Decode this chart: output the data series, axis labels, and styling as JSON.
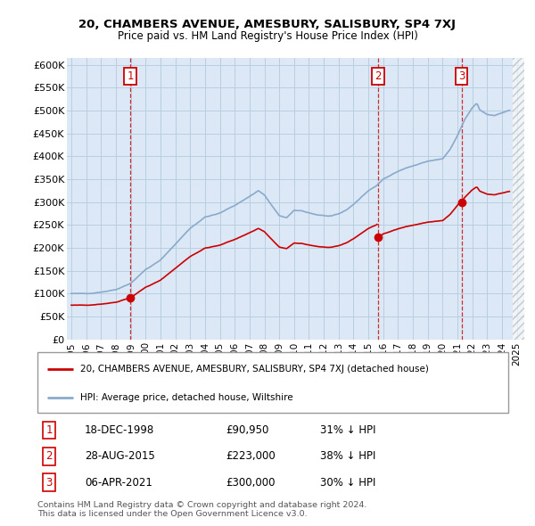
{
  "title": "20, CHAMBERS AVENUE, AMESBURY, SALISBURY, SP4 7XJ",
  "subtitle": "Price paid vs. HM Land Registry's House Price Index (HPI)",
  "ylabel_ticks": [
    "£0",
    "£50K",
    "£100K",
    "£150K",
    "£200K",
    "£250K",
    "£300K",
    "£350K",
    "£400K",
    "£450K",
    "£500K",
    "£550K",
    "£600K"
  ],
  "ylim": [
    0,
    620000
  ],
  "yticks": [
    0,
    50000,
    100000,
    150000,
    200000,
    250000,
    300000,
    350000,
    400000,
    450000,
    500000,
    550000,
    600000
  ],
  "hpi_color": "#89aacc",
  "sale_color": "#cc0000",
  "vline_color": "#cc0000",
  "bg_chart": "#dce8f5",
  "grid_color": "#b8cfe0",
  "sale_years": [
    1998.96,
    2015.65,
    2021.27
  ],
  "sale_prices": [
    90950,
    223000,
    300000
  ],
  "sale_labels": [
    "1",
    "2",
    "3"
  ],
  "legend_label_red": "20, CHAMBERS AVENUE, AMESBURY, SALISBURY, SP4 7XJ (detached house)",
  "legend_label_blue": "HPI: Average price, detached house, Wiltshire",
  "table_rows": [
    {
      "num": "1",
      "date": "18-DEC-1998",
      "price": "£90,950",
      "note": "31% ↓ HPI"
    },
    {
      "num": "2",
      "date": "28-AUG-2015",
      "price": "£223,000",
      "note": "38% ↓ HPI"
    },
    {
      "num": "3",
      "date": "06-APR-2021",
      "price": "£300,000",
      "note": "30% ↓ HPI"
    }
  ],
  "footer": "Contains HM Land Registry data © Crown copyright and database right 2024.\nThis data is licensed under the Open Government Licence v3.0.",
  "background_color": "#ffffff",
  "xticks": [
    1995,
    1996,
    1997,
    1998,
    1999,
    2000,
    2001,
    2002,
    2003,
    2004,
    2005,
    2006,
    2007,
    2008,
    2009,
    2010,
    2011,
    2012,
    2013,
    2014,
    2015,
    2016,
    2017,
    2018,
    2019,
    2020,
    2021,
    2022,
    2023,
    2024,
    2025
  ]
}
